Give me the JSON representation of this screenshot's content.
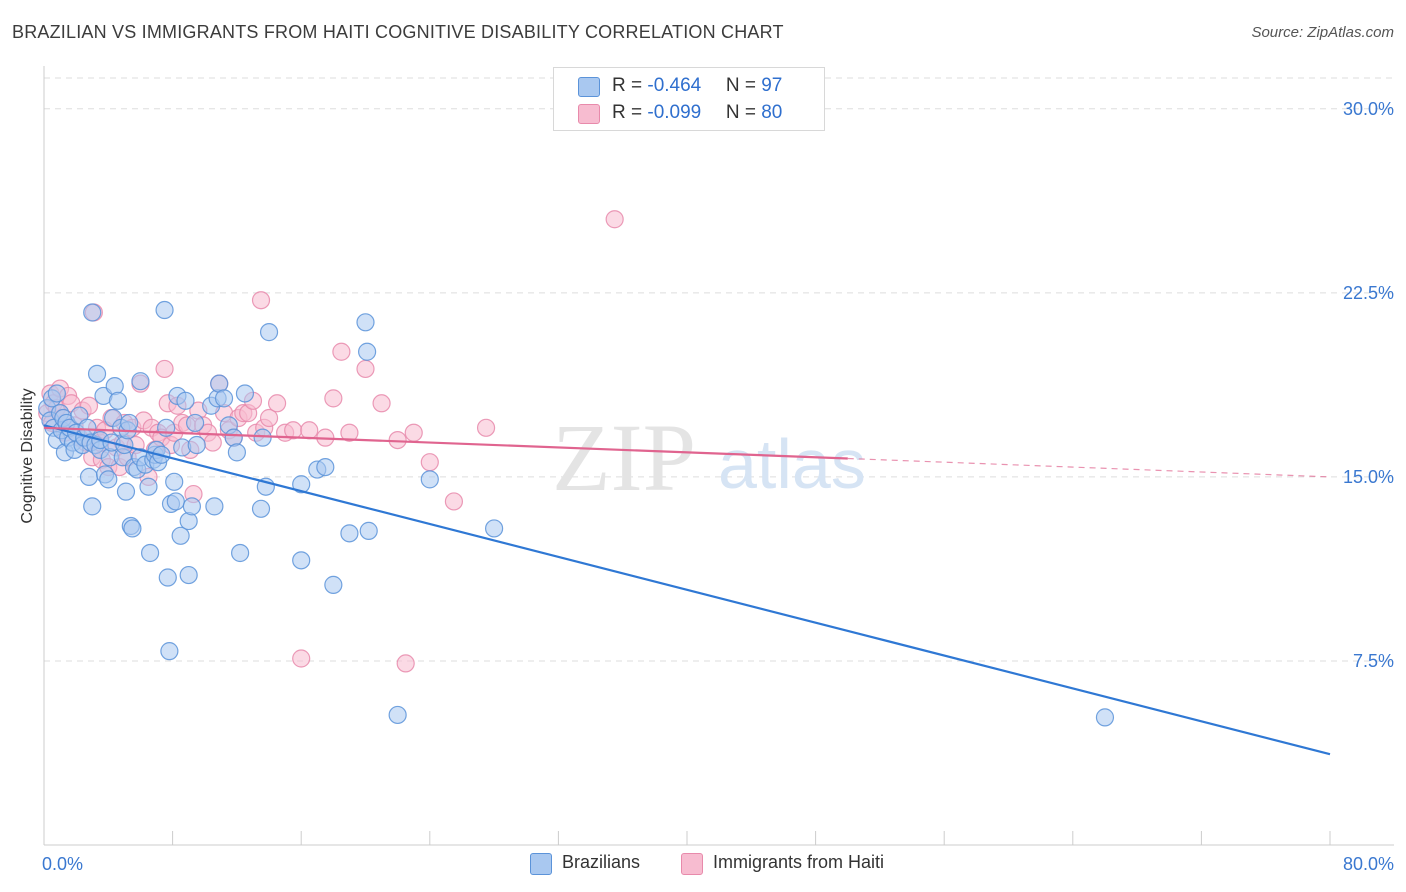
{
  "title": "BRAZILIAN VS IMMIGRANTS FROM HAITI COGNITIVE DISABILITY CORRELATION CHART",
  "source": "Source: ZipAtlas.com",
  "watermark": {
    "zip": "ZIP",
    "atlas": "atlas"
  },
  "legend_top": {
    "rows": [
      {
        "r_label": "R = ",
        "r_value": "-0.464",
        "n_label": "N = ",
        "n_value": "97"
      },
      {
        "r_label": "R = ",
        "r_value": "-0.099",
        "n_label": "N = ",
        "n_value": "80"
      }
    ]
  },
  "legend_bottom": {
    "items": [
      {
        "label": "Brazilians"
      },
      {
        "label": "Immigrants from Haiti"
      }
    ]
  },
  "colors": {
    "blue_fill": "#a9c8f0",
    "blue_stroke": "#5b93d9",
    "blue_line": "#2f78d4",
    "pink_fill": "#f7bcd0",
    "pink_stroke": "#e88aab",
    "pink_line": "#e0648f",
    "axis_text": "#3a78d0",
    "grid": "#dddddd"
  },
  "chart_data": {
    "type": "scatter",
    "title": "BRAZILIAN VS IMMIGRANTS FROM HAITI COGNITIVE DISABILITY CORRELATION CHART",
    "xlabel": "",
    "ylabel": "Cognitive Disability",
    "xlim": [
      0,
      80
    ],
    "ylim": [
      0,
      31.5
    ],
    "x_tick_labels": [
      "0.0%",
      "80.0%"
    ],
    "y_ticks": [
      7.5,
      15.0,
      22.5,
      30.0
    ],
    "y_tick_labels": [
      "7.5%",
      "15.0%",
      "22.5%",
      "30.0%"
    ],
    "grid": true,
    "series": [
      {
        "name": "Brazilians",
        "r": -0.464,
        "n": 97,
        "trend": {
          "x0": 0,
          "y0": 17.1,
          "x1": 80,
          "y1": 3.7,
          "dashed_from": null
        },
        "points": [
          [
            0.2,
            17.8
          ],
          [
            0.4,
            17.3
          ],
          [
            0.5,
            18.2
          ],
          [
            0.6,
            17.0
          ],
          [
            0.8,
            16.5
          ],
          [
            0.8,
            18.4
          ],
          [
            1.0,
            17.6
          ],
          [
            1.1,
            16.9
          ],
          [
            1.2,
            17.4
          ],
          [
            1.3,
            16.0
          ],
          [
            1.4,
            17.2
          ],
          [
            1.5,
            16.6
          ],
          [
            1.6,
            17.0
          ],
          [
            1.8,
            16.4
          ],
          [
            1.9,
            16.1
          ],
          [
            2.0,
            16.8
          ],
          [
            2.2,
            17.5
          ],
          [
            2.4,
            16.3
          ],
          [
            2.5,
            16.6
          ],
          [
            2.7,
            17.0
          ],
          [
            2.8,
            15.0
          ],
          [
            2.9,
            16.4
          ],
          [
            3.0,
            13.8
          ],
          [
            3.0,
            21.7
          ],
          [
            3.2,
            16.3
          ],
          [
            3.3,
            19.2
          ],
          [
            3.5,
            16.1
          ],
          [
            3.5,
            16.5
          ],
          [
            3.7,
            18.3
          ],
          [
            3.8,
            15.1
          ],
          [
            4.0,
            14.9
          ],
          [
            4.1,
            15.8
          ],
          [
            4.2,
            16.4
          ],
          [
            4.3,
            17.4
          ],
          [
            4.4,
            18.7
          ],
          [
            4.6,
            18.1
          ],
          [
            4.8,
            17.0
          ],
          [
            4.9,
            15.8
          ],
          [
            5.0,
            16.3
          ],
          [
            5.1,
            14.4
          ],
          [
            5.2,
            16.9
          ],
          [
            5.3,
            17.2
          ],
          [
            5.4,
            13.0
          ],
          [
            5.5,
            12.9
          ],
          [
            5.6,
            15.4
          ],
          [
            5.8,
            15.3
          ],
          [
            6.0,
            18.9
          ],
          [
            6.0,
            15.8
          ],
          [
            6.3,
            15.5
          ],
          [
            6.5,
            14.6
          ],
          [
            6.6,
            11.9
          ],
          [
            6.8,
            15.7
          ],
          [
            6.9,
            15.9
          ],
          [
            7.0,
            16.1
          ],
          [
            7.1,
            15.6
          ],
          [
            7.3,
            15.9
          ],
          [
            7.5,
            21.8
          ],
          [
            7.6,
            17.0
          ],
          [
            7.7,
            10.9
          ],
          [
            7.8,
            7.9
          ],
          [
            7.9,
            13.9
          ],
          [
            8.1,
            14.8
          ],
          [
            8.2,
            14.0
          ],
          [
            8.3,
            18.3
          ],
          [
            8.5,
            12.6
          ],
          [
            8.6,
            16.2
          ],
          [
            8.8,
            18.1
          ],
          [
            9.0,
            11.0
          ],
          [
            9.0,
            13.2
          ],
          [
            9.2,
            13.8
          ],
          [
            9.4,
            17.2
          ],
          [
            9.5,
            16.3
          ],
          [
            10.4,
            17.9
          ],
          [
            10.6,
            13.8
          ],
          [
            10.8,
            18.2
          ],
          [
            10.9,
            18.8
          ],
          [
            11.2,
            18.2
          ],
          [
            11.5,
            17.1
          ],
          [
            11.8,
            16.6
          ],
          [
            12.0,
            16.0
          ],
          [
            12.2,
            11.9
          ],
          [
            12.5,
            18.4
          ],
          [
            13.5,
            13.7
          ],
          [
            13.6,
            16.6
          ],
          [
            13.8,
            14.6
          ],
          [
            14.0,
            20.9
          ],
          [
            16.0,
            14.7
          ],
          [
            16.0,
            11.6
          ],
          [
            17.0,
            15.3
          ],
          [
            17.5,
            15.4
          ],
          [
            18.0,
            10.6
          ],
          [
            19.0,
            12.7
          ],
          [
            20.0,
            21.3
          ],
          [
            20.1,
            20.1
          ],
          [
            20.2,
            12.8
          ],
          [
            22.0,
            5.3
          ],
          [
            24.0,
            14.9
          ],
          [
            28.0,
            12.9
          ],
          [
            66.0,
            5.2
          ]
        ]
      },
      {
        "name": "Immigrants from Haiti",
        "r": -0.099,
        "n": 80,
        "trend": {
          "x0": 0,
          "y0": 17.0,
          "x1": 80,
          "y1": 15.0,
          "dashed_from": 50
        },
        "points": [
          [
            0.2,
            17.6
          ],
          [
            0.4,
            18.4
          ],
          [
            0.5,
            17.2
          ],
          [
            0.6,
            18.0
          ],
          [
            0.8,
            17.8
          ],
          [
            1.0,
            18.6
          ],
          [
            1.2,
            17.4
          ],
          [
            1.3,
            16.8
          ],
          [
            1.5,
            18.3
          ],
          [
            1.7,
            18.0
          ],
          [
            1.9,
            17.1
          ],
          [
            2.2,
            16.6
          ],
          [
            2.4,
            17.7
          ],
          [
            2.6,
            16.4
          ],
          [
            2.8,
            17.9
          ],
          [
            3.0,
            15.8
          ],
          [
            3.1,
            21.7
          ],
          [
            3.3,
            17.0
          ],
          [
            3.5,
            16.4
          ],
          [
            3.6,
            15.7
          ],
          [
            3.8,
            16.9
          ],
          [
            4.0,
            15.4
          ],
          [
            4.2,
            17.4
          ],
          [
            4.5,
            16.2
          ],
          [
            4.7,
            15.4
          ],
          [
            4.9,
            16.4
          ],
          [
            5.0,
            17.2
          ],
          [
            5.2,
            15.8
          ],
          [
            5.5,
            17.0
          ],
          [
            5.7,
            16.3
          ],
          [
            6.0,
            18.8
          ],
          [
            6.2,
            17.3
          ],
          [
            6.5,
            15.0
          ],
          [
            6.7,
            17.0
          ],
          [
            6.9,
            16.1
          ],
          [
            7.1,
            16.8
          ],
          [
            7.3,
            16.6
          ],
          [
            7.5,
            19.4
          ],
          [
            7.7,
            18.0
          ],
          [
            7.9,
            16.3
          ],
          [
            8.1,
            16.8
          ],
          [
            8.3,
            17.9
          ],
          [
            8.6,
            17.2
          ],
          [
            8.9,
            17.1
          ],
          [
            9.1,
            16.1
          ],
          [
            9.3,
            14.3
          ],
          [
            9.6,
            17.7
          ],
          [
            9.9,
            17.1
          ],
          [
            10.2,
            16.8
          ],
          [
            10.5,
            16.4
          ],
          [
            10.9,
            18.8
          ],
          [
            11.2,
            17.6
          ],
          [
            11.5,
            16.9
          ],
          [
            11.8,
            16.6
          ],
          [
            12.1,
            17.4
          ],
          [
            12.4,
            17.6
          ],
          [
            12.7,
            17.6
          ],
          [
            13.0,
            18.1
          ],
          [
            13.2,
            16.8
          ],
          [
            13.5,
            22.2
          ],
          [
            13.7,
            17.0
          ],
          [
            14.0,
            17.4
          ],
          [
            14.5,
            18.0
          ],
          [
            15.0,
            16.8
          ],
          [
            15.5,
            16.9
          ],
          [
            16.0,
            7.6
          ],
          [
            16.5,
            16.9
          ],
          [
            17.5,
            16.6
          ],
          [
            18.0,
            18.2
          ],
          [
            18.5,
            20.1
          ],
          [
            19.0,
            16.8
          ],
          [
            20.0,
            19.4
          ],
          [
            21.0,
            18.0
          ],
          [
            22.0,
            16.5
          ],
          [
            22.5,
            7.4
          ],
          [
            23.0,
            16.8
          ],
          [
            24.0,
            15.6
          ],
          [
            25.5,
            14.0
          ],
          [
            27.5,
            17.0
          ],
          [
            35.5,
            25.5
          ]
        ]
      }
    ]
  }
}
